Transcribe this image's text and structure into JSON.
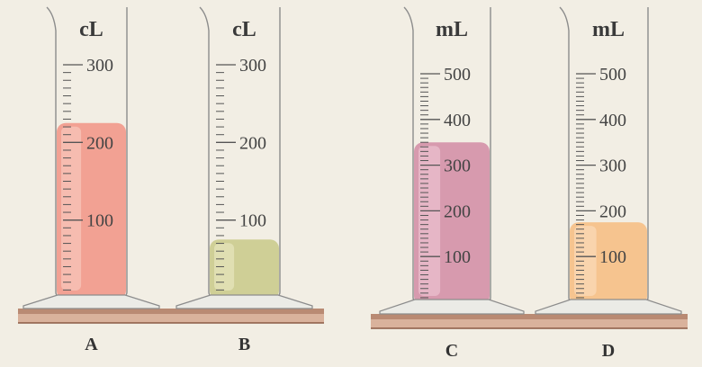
{
  "background": "#f2eee4",
  "shelf": {
    "top_color": "#b98a73",
    "face_color": "#d9b29c",
    "edge_color": "#8a5a44"
  },
  "cylinders": [
    {
      "label": "A",
      "unit": "cL",
      "scale_max": 300,
      "major_ticks": [
        "100",
        "200",
        "300"
      ],
      "fill_level": 225,
      "liquid_color": "#f2a193",
      "liquid_light": "#f8c7bc"
    },
    {
      "label": "B",
      "unit": "cL",
      "scale_max": 300,
      "major_ticks": [
        "100",
        "200",
        "300"
      ],
      "fill_level": 75,
      "liquid_color": "#cfcf96",
      "liquid_light": "#e7e6bd"
    },
    {
      "label": "C",
      "unit": "mL",
      "scale_max": 500,
      "major_ticks": [
        "100",
        "200",
        "300",
        "400",
        "500"
      ],
      "fill_level": 350,
      "liquid_color": "#d79aae",
      "liquid_light": "#ecc2d0"
    },
    {
      "label": "D",
      "unit": "mL",
      "scale_max": 500,
      "major_ticks": [
        "100",
        "200",
        "300",
        "400",
        "500"
      ],
      "fill_level": 175,
      "liquid_color": "#f6c48f",
      "liquid_light": "#fbdcb9"
    }
  ]
}
